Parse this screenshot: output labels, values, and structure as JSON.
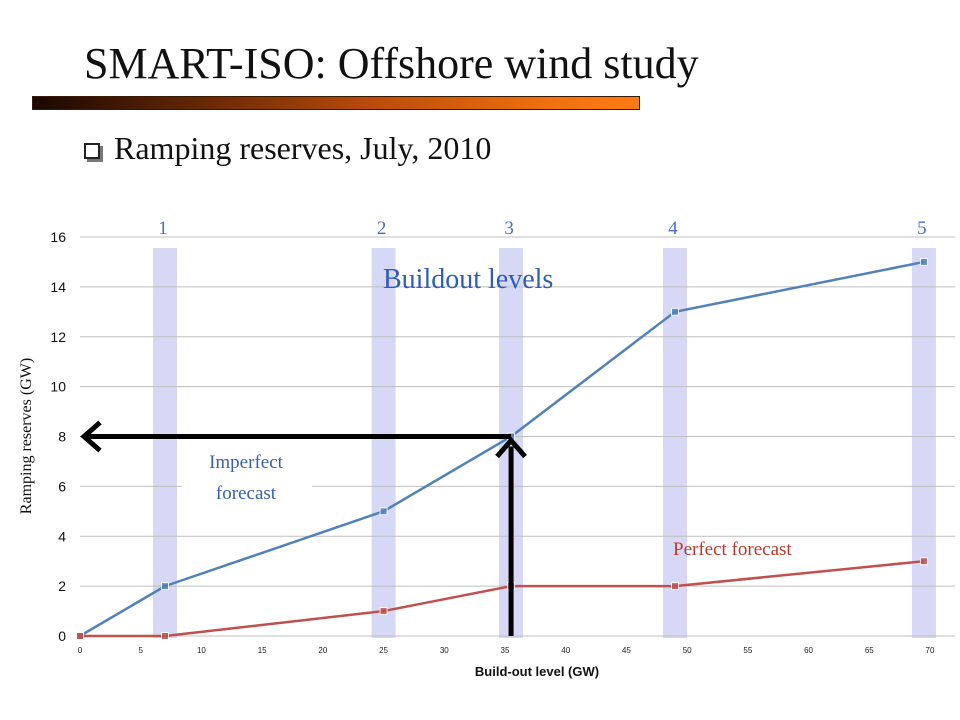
{
  "slide": {
    "title": "SMART-ISO: Offshore wind study",
    "bullet": "Ramping reserves, July, 2010"
  },
  "chart_data": {
    "type": "line",
    "xlabel": "Build-out level (GW)",
    "ylabel": "Ramping reserves (GW)",
    "xlim": [
      0,
      70
    ],
    "ylim": [
      0,
      16
    ],
    "x_ticks": [
      0,
      5,
      10,
      15,
      20,
      25,
      30,
      35,
      40,
      45,
      50,
      55,
      60,
      65,
      70
    ],
    "y_ticks": [
      0,
      2,
      4,
      6,
      8,
      10,
      12,
      14,
      16
    ],
    "grid": "horizontal",
    "series": [
      {
        "key": "imperfect",
        "x": [
          0,
          7,
          25,
          35.5,
          49,
          69.5
        ],
        "y": [
          0,
          2,
          5,
          8,
          13,
          15
        ],
        "color": "#4f81bd"
      },
      {
        "key": "perfect",
        "x": [
          0,
          7,
          25,
          35.5,
          49,
          69.5
        ],
        "y": [
          0,
          0,
          1,
          2,
          2,
          3
        ],
        "color": "#c0504d"
      }
    ],
    "bands": [
      {
        "label": "1",
        "x": 7
      },
      {
        "label": "2",
        "x": 25
      },
      {
        "label": "3",
        "x": 35.5
      },
      {
        "label": "4",
        "x": 49
      },
      {
        "label": "5",
        "x": 69.5
      }
    ],
    "annotations": {
      "buildout": "Buildout levels",
      "imperfect_line1": "Imperfect",
      "imperfect_line2": "forecast",
      "perfect": "Perfect forecast"
    },
    "arrow": {
      "x": 35.5,
      "y": 8
    }
  },
  "colors": {
    "band": "#d6d8f5",
    "imperfect": "#4f81bd",
    "perfect": "#c0504d",
    "arrow": "#000000"
  }
}
